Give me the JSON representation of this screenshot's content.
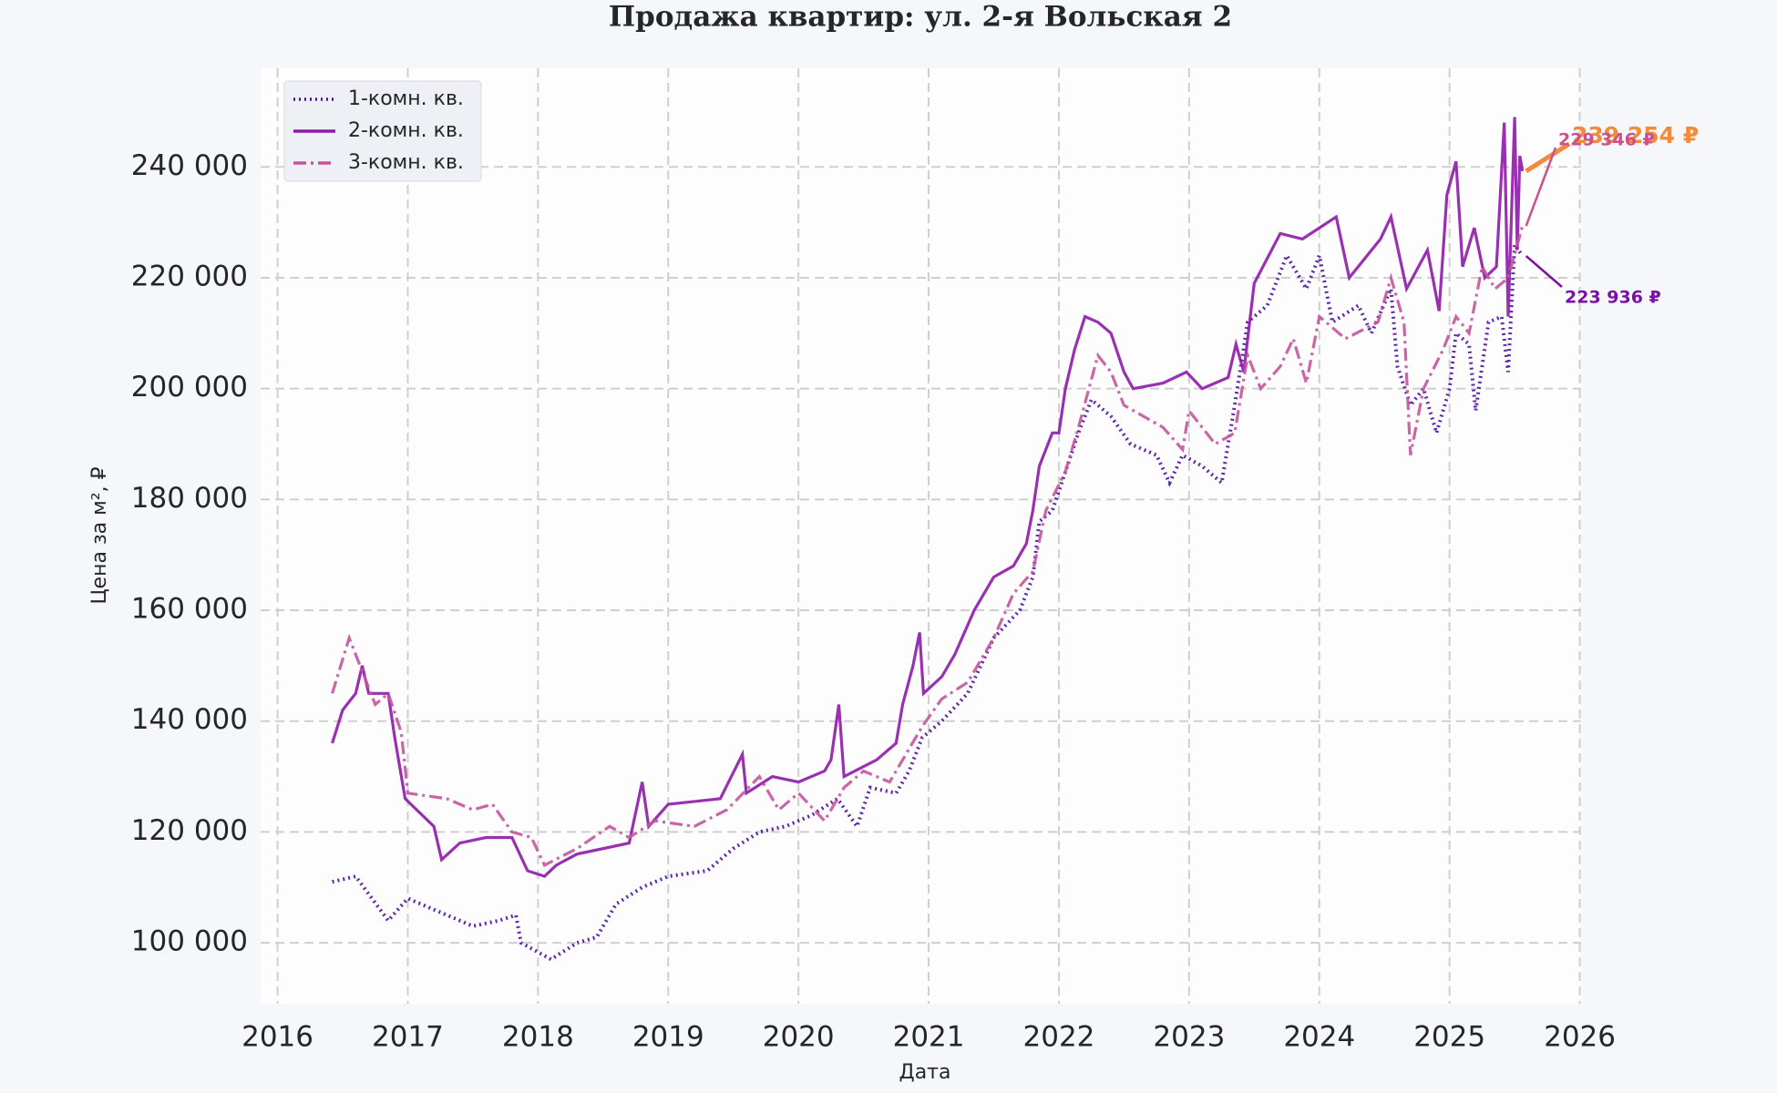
{
  "chart_data": {
    "type": "line",
    "title": "Продажа квартир: ул. 2-я Вольская 2",
    "x_label": "Дата",
    "y_label": "Цена за м², ₽",
    "xlim": [
      2015.87,
      2026.01
    ],
    "ylim": [
      89000,
      257800
    ],
    "xticks": [
      2016,
      2017,
      2018,
      2019,
      2020,
      2021,
      2022,
      2023,
      2024,
      2025,
      2026
    ],
    "yticks": [
      {
        "value": 100000,
        "label": "100 000"
      },
      {
        "value": 120000,
        "label": "120 000"
      },
      {
        "value": 140000,
        "label": "140 000"
      },
      {
        "value": 160000,
        "label": "160 000"
      },
      {
        "value": 180000,
        "label": "180 000"
      },
      {
        "value": 200000,
        "label": "200 000"
      },
      {
        "value": 220000,
        "label": "220 000"
      },
      {
        "value": 240000,
        "label": "240 000"
      }
    ],
    "grid": true,
    "legend": "upper left",
    "series": [
      {
        "name": "1-комн. кв.",
        "color": "#4a0f9e",
        "linestyle": "dotted",
        "x": [
          2016.42,
          2016.6,
          2016.85,
          2017.0,
          2017.2,
          2017.5,
          2017.7,
          2017.83,
          2017.87,
          2018.1,
          2018.3,
          2018.45,
          2018.6,
          2018.8,
          2019.0,
          2019.3,
          2019.5,
          2019.7,
          2019.9,
          2020.1,
          2020.3,
          2020.45,
          2020.55,
          2020.75,
          2020.85,
          2020.95,
          2021.1,
          2021.3,
          2021.5,
          2021.7,
          2021.8,
          2021.85,
          2021.95,
          2022.05,
          2022.15,
          2022.25,
          2022.4,
          2022.55,
          2022.75,
          2022.85,
          2022.95,
          2023.1,
          2023.25,
          2023.35,
          2023.45,
          2023.6,
          2023.75,
          2023.9,
          2024.0,
          2024.1,
          2024.3,
          2024.4,
          2024.55,
          2024.6,
          2024.7,
          2024.8,
          2024.9,
          2025.0,
          2025.05,
          2025.15,
          2025.2,
          2025.3,
          2025.4,
          2025.45,
          2025.5,
          2025.56
        ],
        "values": [
          111000,
          112000,
          104000,
          108000,
          106000,
          103000,
          104000,
          105000,
          100000,
          97000,
          100000,
          101000,
          107000,
          110000,
          112000,
          113000,
          117000,
          120000,
          121000,
          123000,
          126000,
          121000,
          128000,
          127000,
          131000,
          137000,
          140000,
          145000,
          155000,
          160000,
          166000,
          176000,
          178000,
          185000,
          192000,
          198000,
          195000,
          190000,
          188000,
          183000,
          188000,
          186000,
          183000,
          197000,
          212000,
          215000,
          224000,
          218000,
          224000,
          212000,
          215000,
          210000,
          218000,
          204000,
          197000,
          200000,
          192000,
          200000,
          210000,
          208000,
          196000,
          212000,
          213000,
          203000,
          226000,
          223936
        ]
      },
      {
        "name": "2-комн. кв.",
        "color": "#8e1aaa",
        "linestyle": "solid",
        "x": [
          2016.42,
          2016.5,
          2016.6,
          2016.65,
          2016.7,
          2016.85,
          2016.9,
          2016.98,
          2017.2,
          2017.26,
          2017.4,
          2017.6,
          2017.8,
          2017.92,
          2018.05,
          2018.14,
          2018.3,
          2018.7,
          2018.8,
          2018.85,
          2019.0,
          2019.4,
          2019.57,
          2019.6,
          2019.8,
          2020.0,
          2020.2,
          2020.25,
          2020.31,
          2020.35,
          2020.6,
          2020.75,
          2020.8,
          2020.88,
          2020.93,
          2020.96,
          2021.1,
          2021.2,
          2021.35,
          2021.5,
          2021.65,
          2021.75,
          2021.8,
          2021.85,
          2021.95,
          2022.0,
          2022.05,
          2022.12,
          2022.2,
          2022.3,
          2022.4,
          2022.5,
          2022.57,
          2022.8,
          2022.98,
          2023.1,
          2023.3,
          2023.36,
          2023.42,
          2023.5,
          2023.7,
          2023.87,
          2024.13,
          2024.23,
          2024.47,
          2024.55,
          2024.67,
          2024.83,
          2024.92,
          2024.98,
          2025.05,
          2025.1,
          2025.19,
          2025.27,
          2025.36,
          2025.42,
          2025.45,
          2025.5,
          2025.52,
          2025.54,
          2025.56
        ],
        "values": [
          136000,
          142000,
          145000,
          150000,
          145000,
          145000,
          137000,
          126000,
          121000,
          115000,
          118000,
          119000,
          119000,
          113000,
          112000,
          114000,
          116000,
          118000,
          129000,
          121000,
          125000,
          126000,
          134000,
          127000,
          130000,
          129000,
          131000,
          133000,
          143000,
          130000,
          133000,
          136000,
          143000,
          150000,
          156000,
          145000,
          148000,
          152000,
          160000,
          166000,
          168000,
          172000,
          178000,
          186000,
          192000,
          192000,
          200000,
          207000,
          213000,
          212000,
          210000,
          203000,
          200000,
          201000,
          203000,
          200000,
          202000,
          208000,
          203000,
          219000,
          228000,
          227000,
          231000,
          220000,
          227000,
          231000,
          218000,
          225000,
          214000,
          235000,
          241000,
          222000,
          229000,
          220000,
          222000,
          248000,
          213000,
          249000,
          225000,
          242000,
          239254
        ]
      },
      {
        "name": "3-комн. кв.",
        "color": "#c4559b",
        "linestyle": "dashdot",
        "x": [
          2016.42,
          2016.55,
          2016.75,
          2016.85,
          2016.95,
          2017.0,
          2017.3,
          2017.5,
          2017.65,
          2017.8,
          2017.95,
          2018.05,
          2018.3,
          2018.55,
          2018.7,
          2018.9,
          2019.2,
          2019.45,
          2019.7,
          2019.85,
          2020.0,
          2020.2,
          2020.35,
          2020.5,
          2020.7,
          2020.8,
          2020.95,
          2021.1,
          2021.3,
          2021.5,
          2021.65,
          2021.8,
          2021.9,
          2022.05,
          2022.15,
          2022.3,
          2022.4,
          2022.5,
          2022.65,
          2022.8,
          2022.95,
          2023.0,
          2023.2,
          2023.35,
          2023.45,
          2023.55,
          2023.7,
          2023.8,
          2023.9,
          2024.0,
          2024.2,
          2024.45,
          2024.55,
          2024.65,
          2024.7,
          2024.8,
          2024.95,
          2025.05,
          2025.15,
          2025.25,
          2025.35,
          2025.45,
          2025.56
        ],
        "values": [
          145000,
          155000,
          143000,
          145000,
          138000,
          127000,
          126000,
          124000,
          125000,
          120000,
          119000,
          114000,
          117000,
          121000,
          119000,
          122000,
          121000,
          124000,
          130000,
          124000,
          127000,
          122000,
          128000,
          131000,
          129000,
          133000,
          139000,
          144000,
          147000,
          155000,
          163000,
          167000,
          178000,
          185000,
          193000,
          206000,
          203000,
          197000,
          195000,
          193000,
          189000,
          196000,
          190000,
          192000,
          206000,
          200000,
          204000,
          209000,
          201000,
          213000,
          209000,
          212000,
          220000,
          212000,
          188000,
          200000,
          207000,
          213000,
          210000,
          222000,
          218000,
          220000,
          229346
        ]
      }
    ],
    "annotations": [
      {
        "label": "239 254 ₽",
        "x": 2025.56,
        "value": 239254,
        "color": "#f08c3c"
      },
      {
        "label": "229 346 ₽",
        "x": 2025.56,
        "value": 229346,
        "color": "#cf4f8a"
      },
      {
        "label": "223 936 ₽",
        "x": 2025.56,
        "value": 223936,
        "color": "#7a10a8"
      }
    ]
  }
}
